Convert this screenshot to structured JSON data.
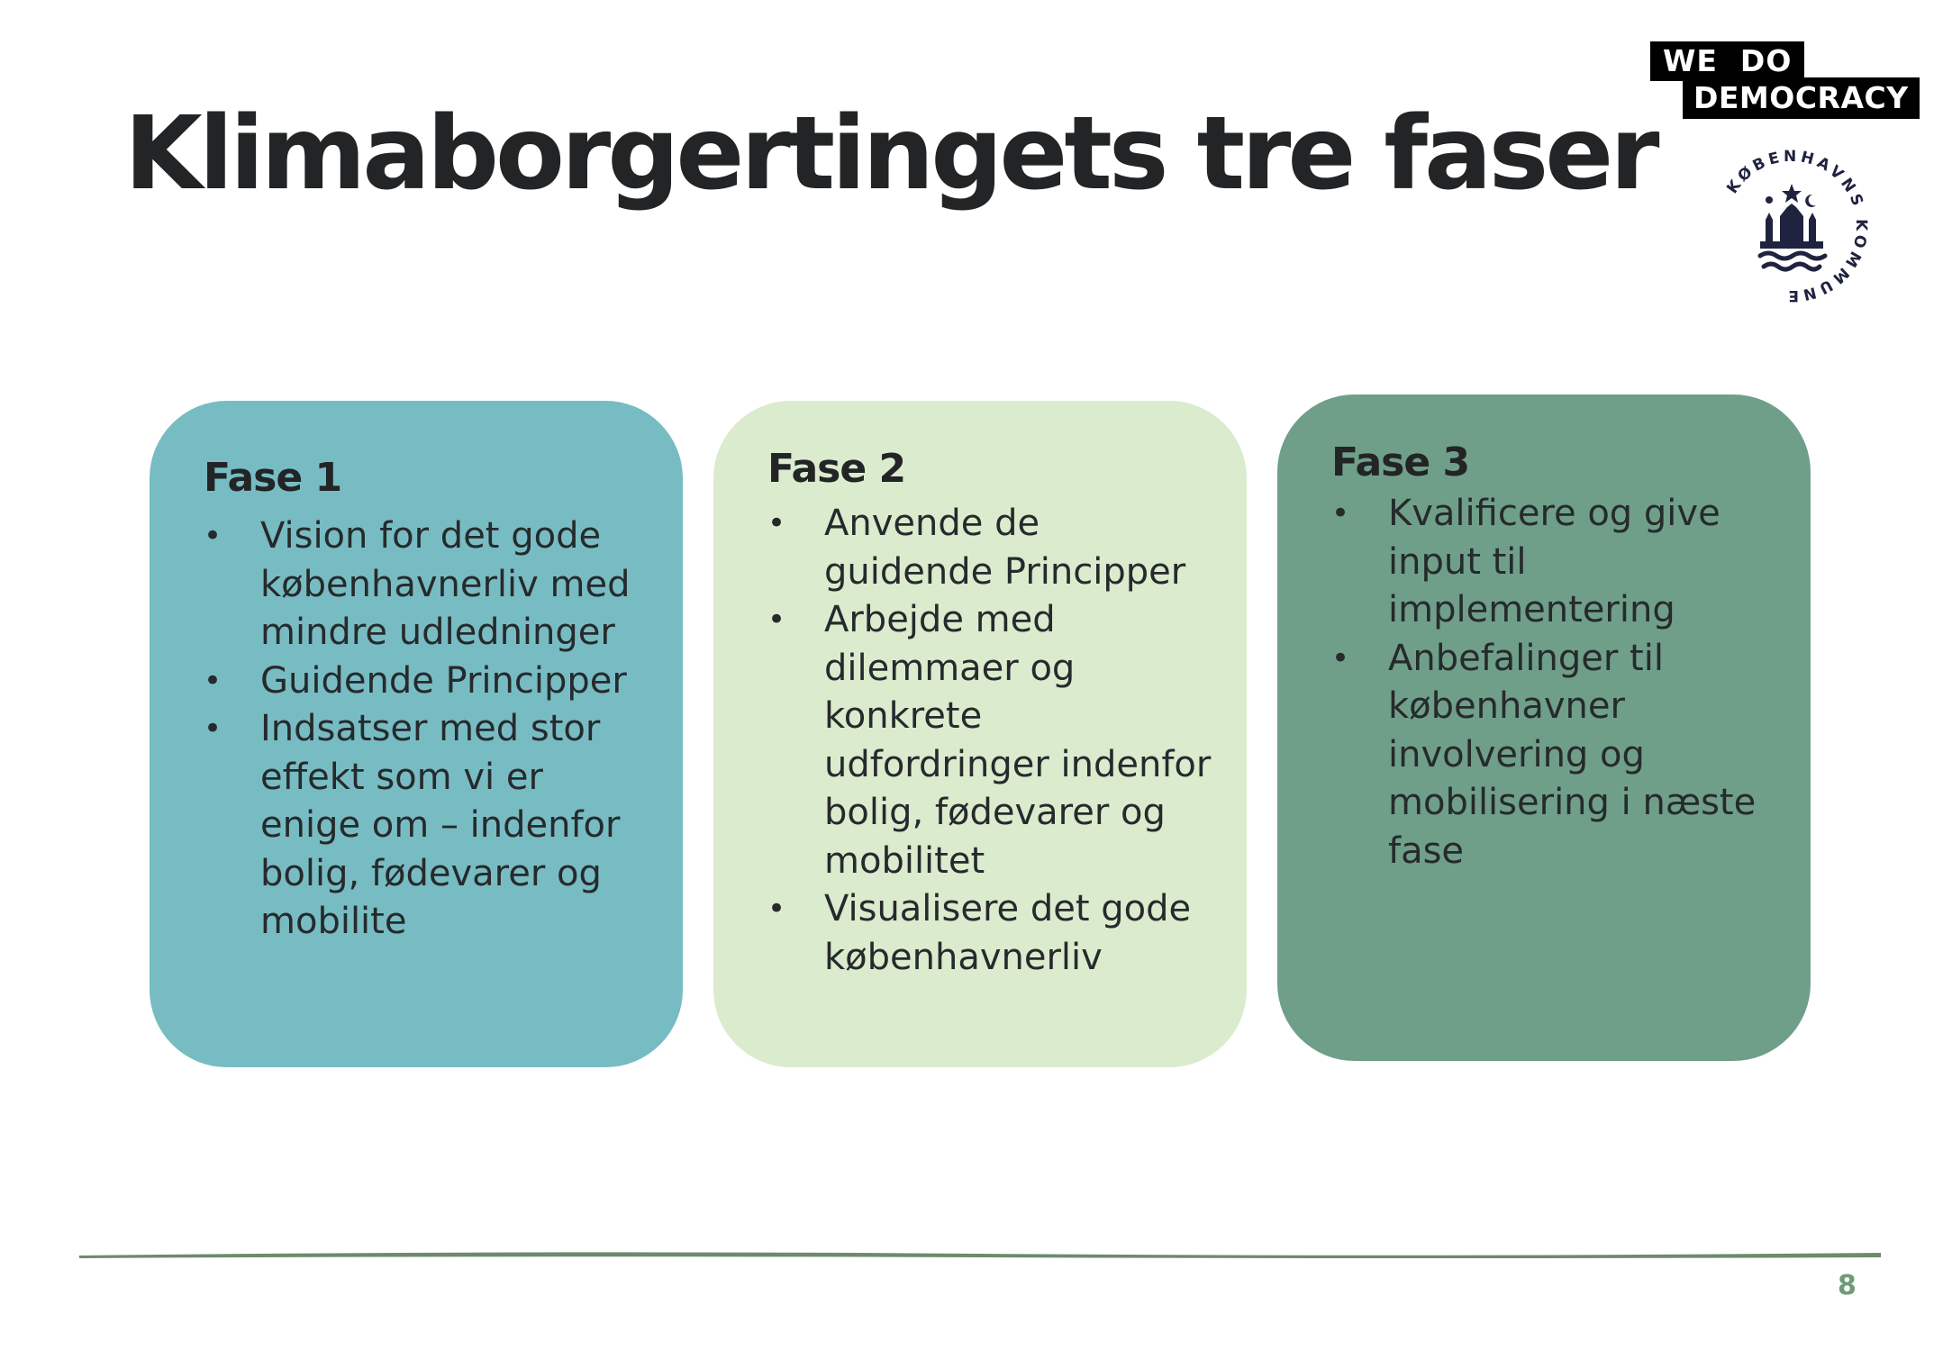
{
  "slide": {
    "title": "Klimaborgertingets tre faser",
    "page_number": "8"
  },
  "logos": {
    "we_do_democracy": {
      "line1": "WE  DO",
      "line2": "DEMOCRACY"
    },
    "seal": {
      "text": "KØBENHAVNS KOMMUNE"
    }
  },
  "colors": {
    "card1": "#78bcc3",
    "card2": "#dbebcd",
    "card3": "#6f9f89",
    "footer_line": "#6f8a6d",
    "page_number": "#6f9a78",
    "seal": "#1f2340"
  },
  "phases": [
    {
      "title": "Fase 1",
      "bullets": [
        "Vision for det gode københavnerliv med mindre udledninger",
        "Guidende Principper",
        "Indsatser med stor effekt som vi er enige om – indenfor bolig, fødevarer og mobilite"
      ]
    },
    {
      "title": "Fase 2",
      "bullets": [
        "Anvende de guidende Principper",
        "Arbejde med dilemmaer og konkrete udfordringer indenfor bolig, fødevarer og mobilitet",
        "Visualisere det gode københavnerliv"
      ]
    },
    {
      "title": "Fase 3",
      "bullets": [
        "Kvalificere og give input til implementering",
        "Anbefalinger til københavner involvering og mobilisering i næste fase"
      ]
    }
  ]
}
